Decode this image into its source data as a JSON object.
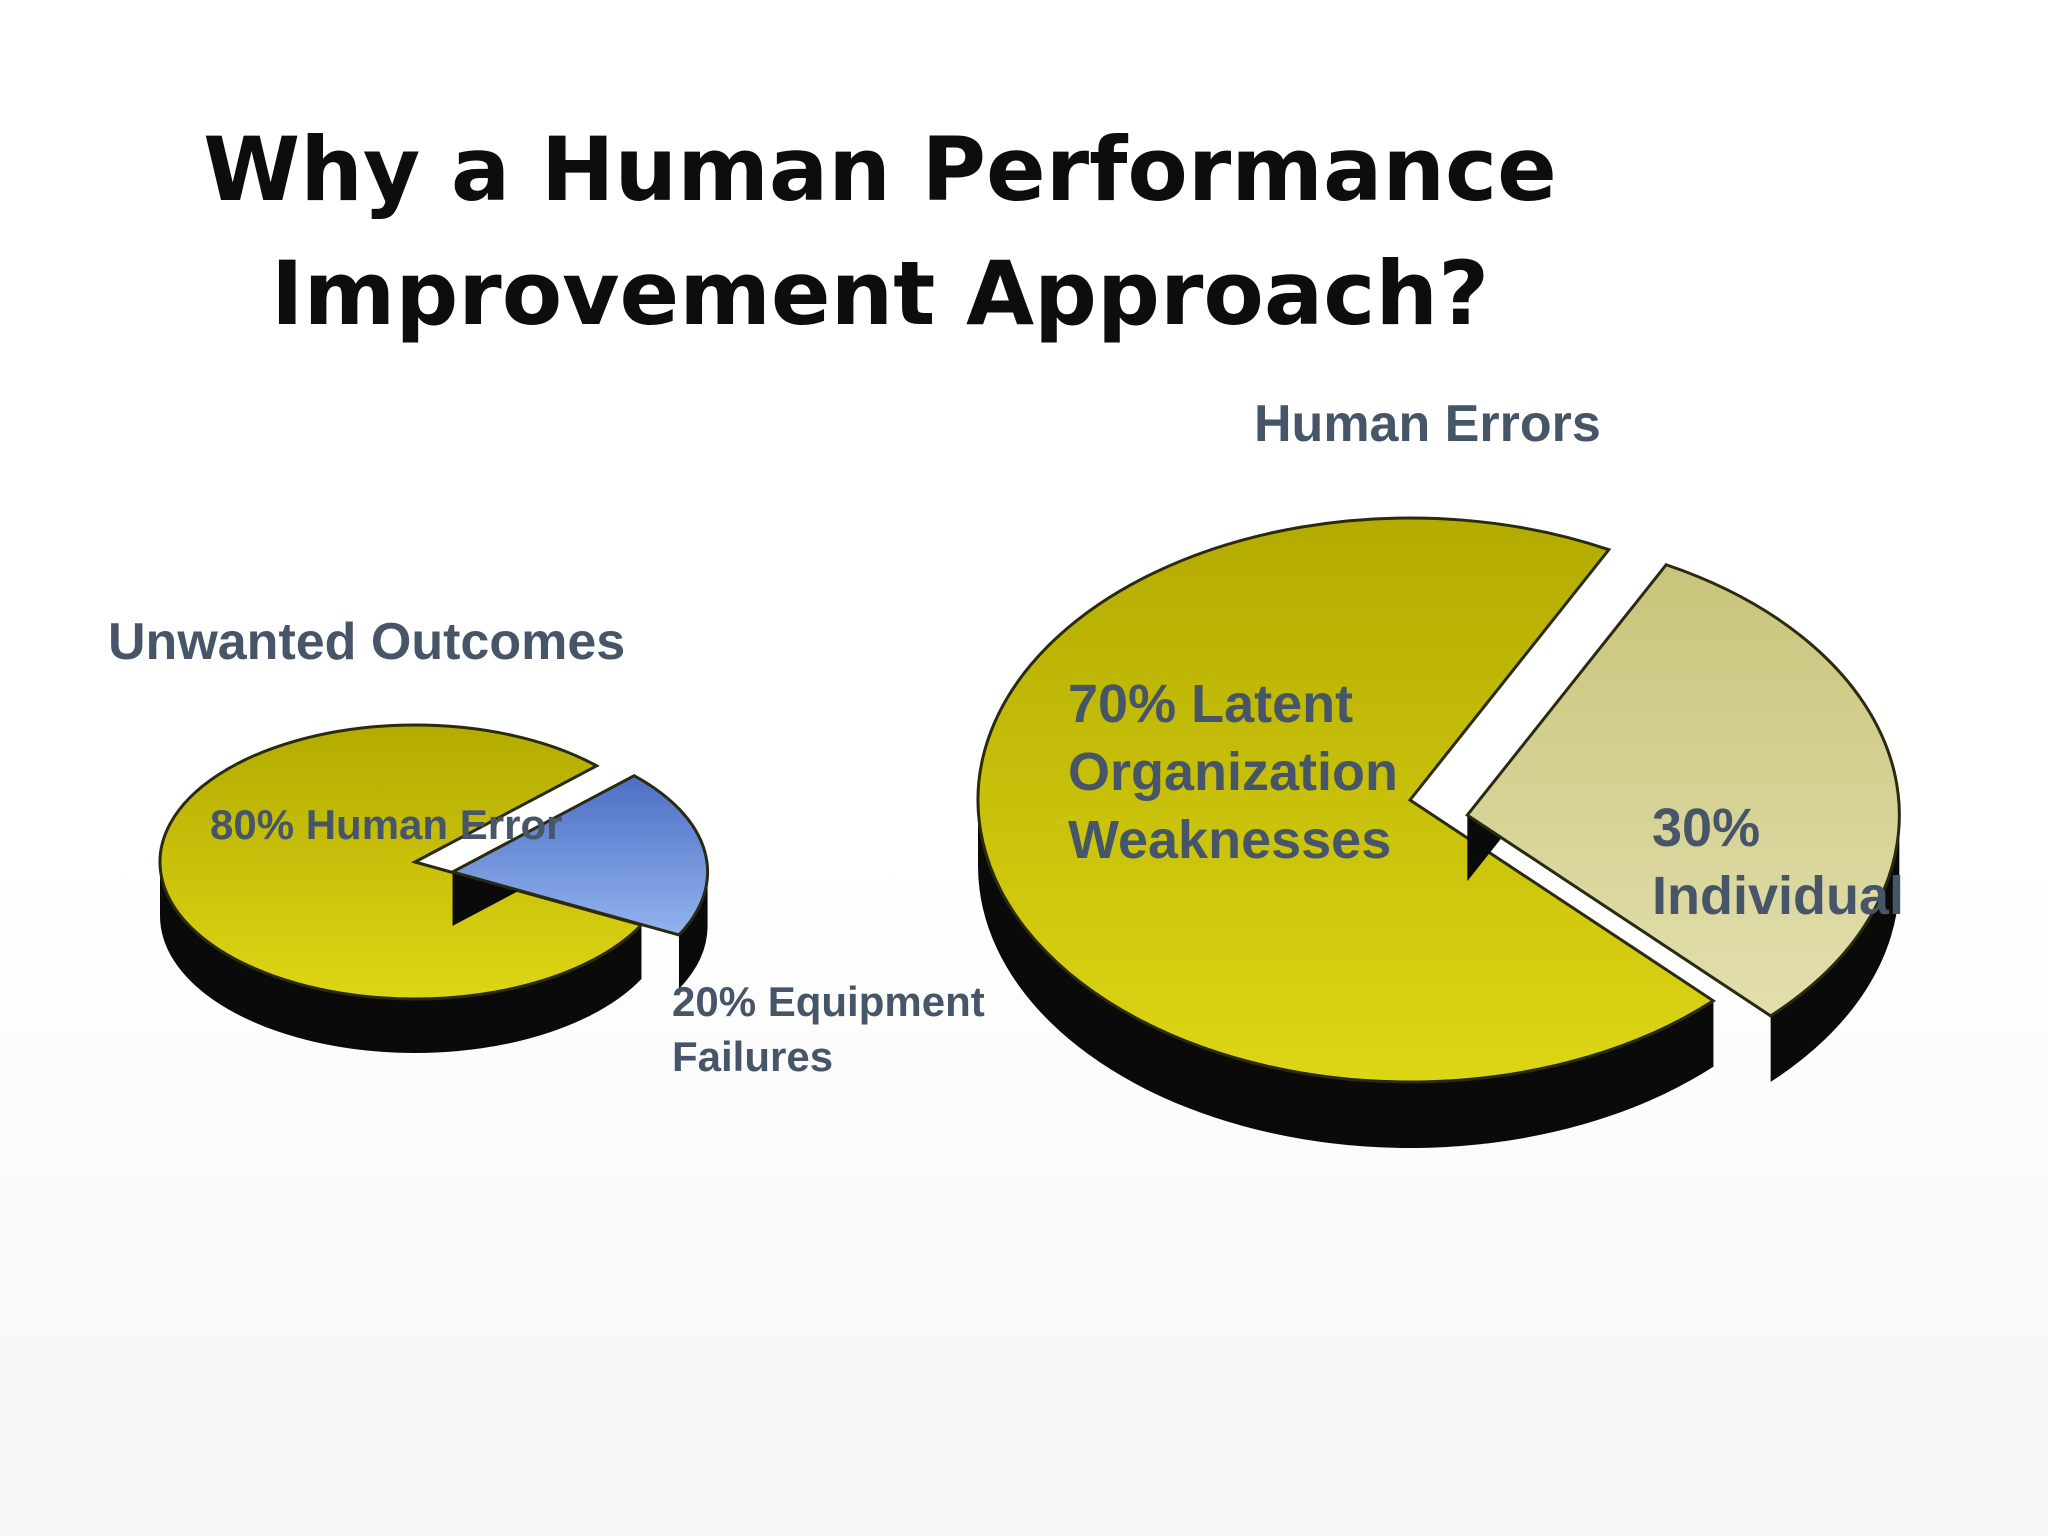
{
  "slide": {
    "title_lines": [
      "Why a Human Performance",
      "Improvement Approach?"
    ]
  },
  "chart_data": [
    {
      "type": "pie",
      "title": "Unwanted Outcomes",
      "categories": [
        "Human Error",
        "Equipment Failures"
      ],
      "values": [
        80,
        20
      ],
      "slice_labels": [
        [
          "80% Human Error"
        ],
        [
          "20% Equipment",
          "Failures"
        ]
      ],
      "colors": [
        "#c9c200",
        "#6f93de"
      ],
      "exploded_slice": "Equipment Failures",
      "style": "3d-exploded"
    },
    {
      "type": "pie",
      "title": "Human Errors",
      "categories": [
        "Latent Organization Weaknesses",
        "Individual"
      ],
      "values": [
        70,
        30
      ],
      "slice_labels": [
        [
          "70% Latent",
          "Organization",
          "Weaknesses"
        ],
        [
          "30%",
          "Individual"
        ]
      ],
      "colors": [
        "#c9c200",
        "#d6d39a"
      ],
      "exploded_slice": "Individual",
      "style": "3d-exploded"
    }
  ],
  "colors": {
    "label_text": "#475568",
    "title_text": "#0d0d0d",
    "pie_depth": "#0a0a0a",
    "slice_outline": "#2a2a10"
  }
}
